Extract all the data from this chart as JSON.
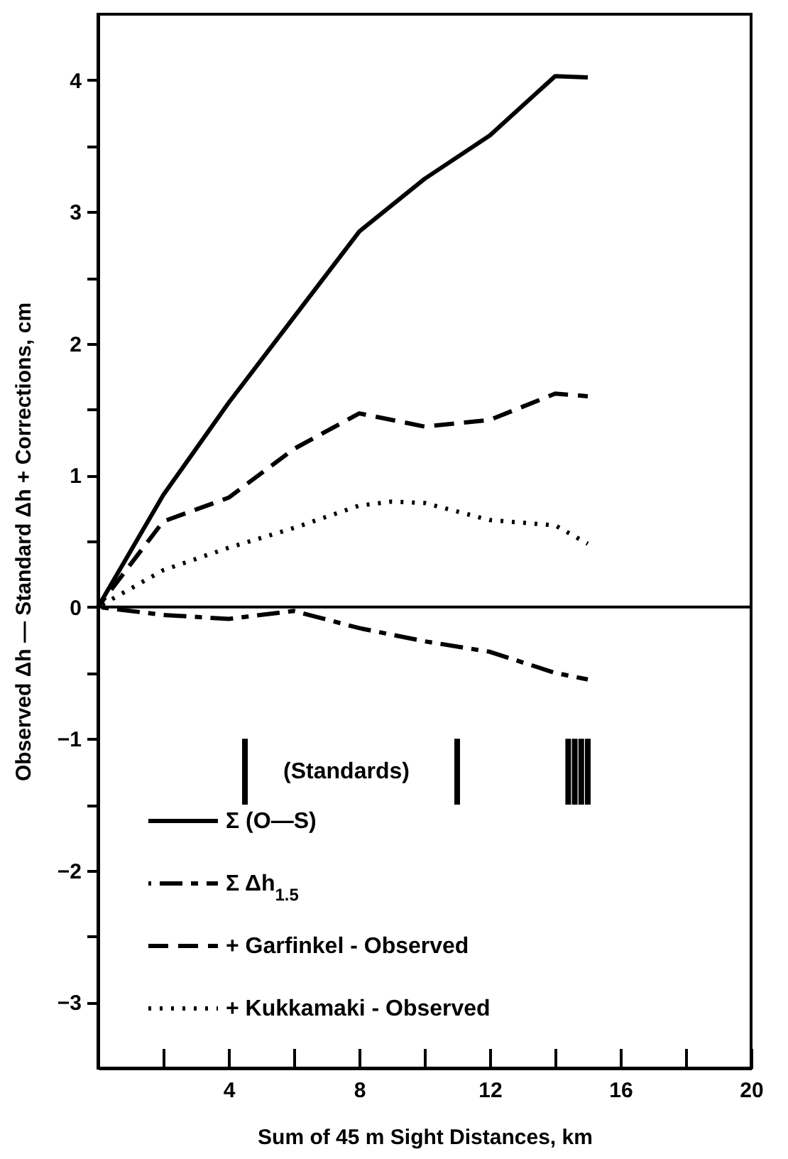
{
  "chart_data": {
    "type": "line",
    "xlabel": "Sum of 45 m Sight Distances, km",
    "ylabel": "Observed Δh — Standard Δh + Corrections, cm",
    "xlim": [
      0,
      20
    ],
    "ylim": [
      -3.5,
      4.5
    ],
    "xticks": [
      {
        "value": 2,
        "label": null
      },
      4,
      {
        "value": 6,
        "label": null
      },
      8,
      {
        "value": 10,
        "label": null
      },
      12,
      {
        "value": 14,
        "label": null
      },
      16,
      {
        "value": 18,
        "label": null
      },
      20
    ],
    "yticks": [
      -3,
      {
        "value": -2.5,
        "label": null
      },
      -2,
      {
        "value": -1.5,
        "label": null
      },
      -1,
      {
        "value": -0.5,
        "label": null
      },
      0,
      {
        "value": 0.5,
        "label": null
      },
      1,
      {
        "value": 1.5,
        "label": null
      },
      2,
      {
        "value": 2.5,
        "label": null
      },
      3,
      {
        "value": 3.5,
        "label": null
      },
      4
    ],
    "grid": false,
    "legend": "bottom left",
    "marker": "none",
    "series": [
      {
        "name": "Σ (O—S)",
        "color": "#000000",
        "line_style": "solid",
        "x": [
          0,
          2,
          4,
          6,
          8,
          10,
          12,
          14,
          15
        ],
        "values": [
          0,
          0.85,
          1.55,
          2.2,
          2.85,
          3.25,
          3.58,
          4.03,
          4.02
        ]
      },
      {
        "name": "Σ Δh$_{1.5}$",
        "color": "#000000",
        "line_style": "dashdot",
        "x": [
          0,
          2,
          4,
          6,
          8,
          10,
          12,
          14,
          15
        ],
        "values": [
          0,
          -0.06,
          -0.09,
          -0.03,
          -0.16,
          -0.26,
          -0.34,
          -0.5,
          -0.55
        ]
      },
      {
        "name": "+ Garfinkel - Observed",
        "color": "#000000",
        "line_style": "dashed",
        "x": [
          0,
          2,
          4,
          6,
          8,
          10,
          12,
          14,
          15
        ],
        "values": [
          0,
          0.65,
          0.83,
          1.2,
          1.47,
          1.37,
          1.42,
          1.62,
          1.6
        ]
      },
      {
        "name": "+ Kukkamaki - Observed",
        "color": "#000000",
        "line_style": "dotted",
        "x": [
          0,
          2,
          4,
          6,
          8,
          9,
          10,
          12,
          14,
          15
        ],
        "values": [
          0,
          0.28,
          0.45,
          0.6,
          0.77,
          0.8,
          0.79,
          0.66,
          0.62,
          0.48
        ]
      },
      {
        "color": "#000000",
        "line_style": "solid",
        "x": [
          4.5,
          4.5,
          null,
          11,
          11,
          null,
          14.4,
          14.4,
          null,
          14.6,
          14.6,
          null,
          14.8,
          14.8,
          null,
          15,
          15
        ],
        "values": [
          -1,
          -1.5,
          null,
          -1,
          -1.5,
          null,
          -1,
          -1.5,
          null,
          -1,
          -1.5,
          null,
          -1,
          -1.5,
          null,
          -1,
          -1.5
        ]
      }
    ],
    "ref_lines": [
      {
        "axis": "y",
        "value": 0,
        "color": "#000000",
        "line_style": "solid"
      }
    ],
    "annotations": [
      "(Standards)"
    ]
  }
}
